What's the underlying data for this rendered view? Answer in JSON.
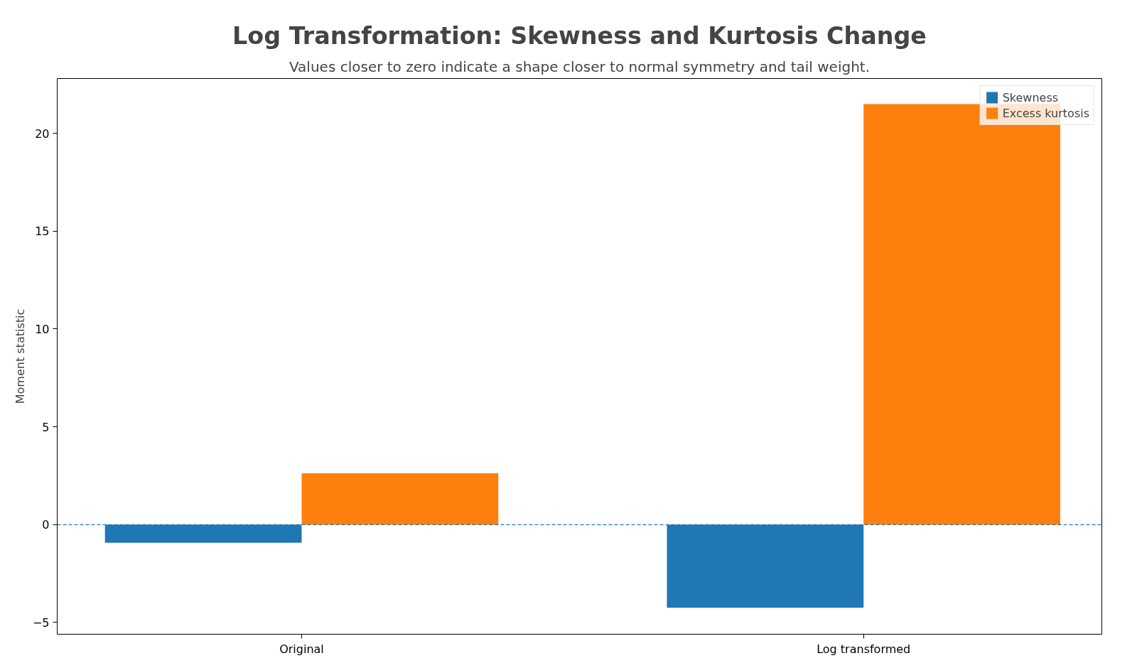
{
  "chart_data": {
    "type": "bar",
    "title": "Log Transformation: Skewness and Kurtosis Change",
    "subtitle": "Values closer to zero indicate a shape closer to normal symmetry and tail weight.",
    "ylabel": "Moment statistic",
    "categories": [
      "Original",
      "Log transformed"
    ],
    "series": [
      {
        "name": "Skewness",
        "color": "#1f77b4",
        "values": [
          -0.92,
          -4.25
        ]
      },
      {
        "name": "Excess kurtosis",
        "color": "#ff7f0e",
        "values": [
          2.63,
          21.49
        ]
      }
    ],
    "ylim": [
      -5.6,
      22.8
    ],
    "yticks": [
      {
        "value": -5,
        "label": "−5"
      },
      0,
      5,
      10,
      15,
      20
    ],
    "ref_lines": [
      {
        "axis": "y",
        "value": 0,
        "color": "#1f77b4",
        "line_style": "dashed"
      }
    ],
    "grid": false,
    "legend": "top right"
  }
}
